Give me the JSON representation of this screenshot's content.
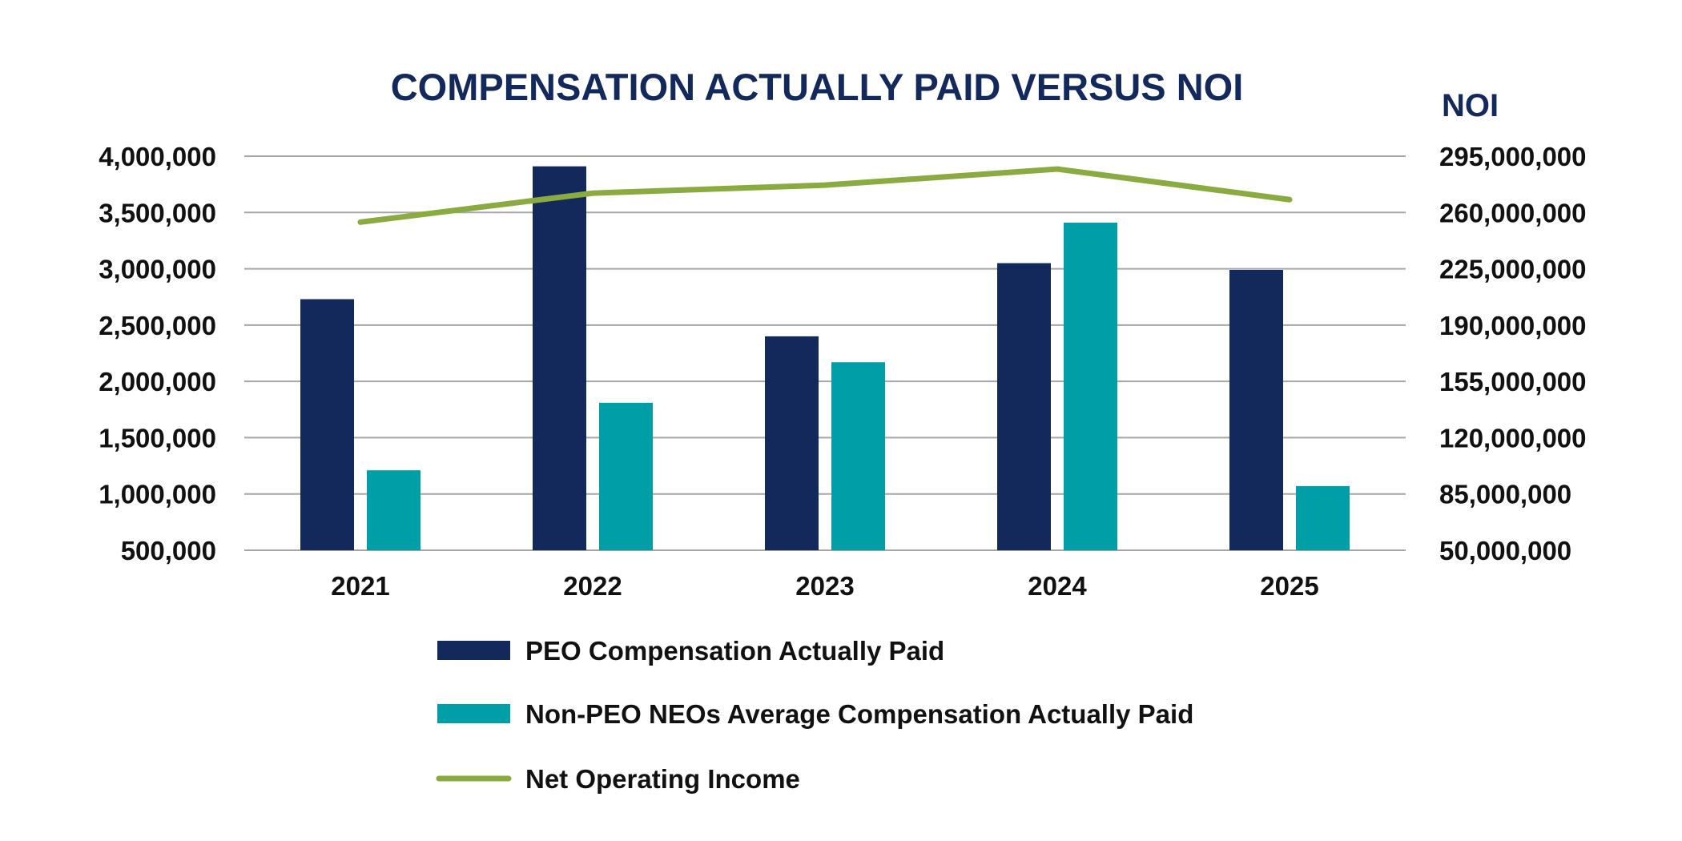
{
  "chart_data": {
    "type": "bar",
    "title": "COMPENSATION ACTUALLY PAID VERSUS NOI",
    "categories": [
      "2021",
      "2022",
      "2023",
      "2024",
      "2025"
    ],
    "series": [
      {
        "name": "PEO Compensation Actually Paid",
        "type": "bar",
        "axis": "left",
        "color": "#13295b",
        "values": [
          2730000,
          3910000,
          2400000,
          3050000,
          2990000
        ]
      },
      {
        "name": "Non-PEO NEOs Average Compensation Actually Paid",
        "type": "bar",
        "axis": "left",
        "color": "#009ea7",
        "values": [
          1210000,
          1810000,
          2170000,
          3410000,
          1070000
        ]
      },
      {
        "name": "Net Operating Income",
        "type": "line",
        "axis": "right",
        "color": "#8aab3f",
        "values": [
          254000000,
          272000000,
          277000000,
          287000000,
          268000000
        ]
      }
    ],
    "y_left": {
      "min": 500000,
      "max": 4000000,
      "ticks": [
        "500,000",
        "1,000,000",
        "1,500,000",
        "2,000,000",
        "2,500,000",
        "3,000,000",
        "3,500,000",
        "4,000,000"
      ]
    },
    "y_right": {
      "label": "NOI",
      "min": 50000000,
      "max": 295000000,
      "ticks": [
        "50,000,000",
        "85,000,000",
        "120,000,000",
        "155,000,000",
        "190,000,000",
        "225,000,000",
        "260,000,000",
        "295,000,000"
      ]
    },
    "grid": true,
    "legend": "bottom"
  }
}
